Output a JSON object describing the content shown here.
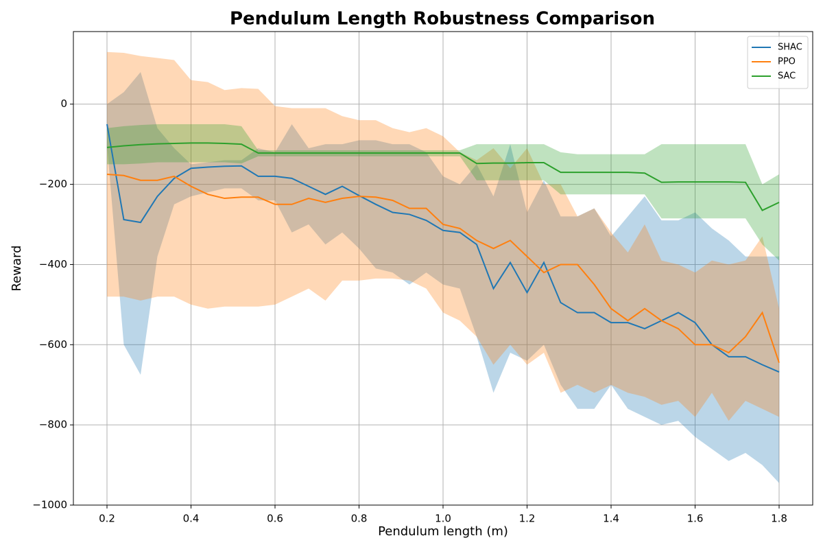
{
  "chart_data": {
    "type": "line",
    "title": "Pendulum Length Robustness Comparison",
    "x_label": "Pendulum length (m)",
    "y_label": "Reward",
    "x": [
      0.2,
      0.24,
      0.28,
      0.32,
      0.36,
      0.4,
      0.44,
      0.48,
      0.52,
      0.56,
      0.6,
      0.64,
      0.68,
      0.72,
      0.76,
      0.8,
      0.84,
      0.88,
      0.92,
      0.96,
      1.0,
      1.04,
      1.08,
      1.12,
      1.16,
      1.2,
      1.24,
      1.28,
      1.32,
      1.36,
      1.4,
      1.44,
      1.48,
      1.52,
      1.56,
      1.6,
      1.64,
      1.68,
      1.72,
      1.76,
      1.8
    ],
    "series": [
      {
        "name": "SHAC",
        "color": "#1f77b4",
        "values": [
          -50,
          -288,
          -295,
          -230,
          -185,
          -160,
          -157,
          -155,
          -154,
          -180,
          -180,
          -185,
          -205,
          -225,
          -205,
          -228,
          -250,
          -270,
          -275,
          -290,
          -315,
          -320,
          -350,
          -460,
          -395,
          -470,
          -395,
          -495,
          -520,
          -520,
          -545,
          -545,
          -560,
          -540,
          -520,
          -545,
          -600,
          -630,
          -630,
          -650,
          -668
        ],
        "upper": [
          0,
          30,
          80,
          -60,
          -110,
          -150,
          -145,
          -140,
          -140,
          -110,
          -120,
          -50,
          -110,
          -100,
          -100,
          -90,
          -90,
          -100,
          -100,
          -120,
          -180,
          -200,
          -150,
          -230,
          -100,
          -270,
          -190,
          -280,
          -280,
          -260,
          -330,
          -280,
          -230,
          -290,
          -290,
          -270,
          -310,
          -340,
          -380,
          -380,
          -380
        ],
        "lower": [
          -100,
          -600,
          -675,
          -380,
          -250,
          -230,
          -220,
          -210,
          -210,
          -240,
          -240,
          -320,
          -300,
          -350,
          -320,
          -360,
          -410,
          -420,
          -450,
          -420,
          -450,
          -460,
          -580,
          -720,
          -620,
          -640,
          -600,
          -700,
          -760,
          -760,
          -700,
          -760,
          -780,
          -800,
          -790,
          -830,
          -860,
          -890,
          -870,
          -900,
          -945
        ]
      },
      {
        "name": "PPO",
        "color": "#ff7f0e",
        "values": [
          -175,
          -178,
          -190,
          -190,
          -180,
          -205,
          -225,
          -235,
          -232,
          -232,
          -250,
          -250,
          -235,
          -245,
          -235,
          -230,
          -232,
          -240,
          -260,
          -260,
          -300,
          -310,
          -340,
          -360,
          -340,
          -380,
          -420,
          -400,
          -400,
          -450,
          -510,
          -540,
          -510,
          -540,
          -560,
          -600,
          -600,
          -620,
          -580,
          -520,
          -645
        ],
        "upper": [
          130,
          128,
          120,
          115,
          110,
          60,
          55,
          35,
          40,
          38,
          -5,
          -10,
          -10,
          -10,
          -30,
          -40,
          -40,
          -60,
          -70,
          -60,
          -80,
          -120,
          -140,
          -110,
          -160,
          -110,
          -200,
          -200,
          -280,
          -260,
          -320,
          -370,
          -300,
          -390,
          -400,
          -420,
          -390,
          -400,
          -390,
          -330,
          -510
        ],
        "lower": [
          -480,
          -480,
          -490,
          -480,
          -480,
          -500,
          -510,
          -505,
          -505,
          -505,
          -500,
          -480,
          -460,
          -490,
          -440,
          -440,
          -435,
          -435,
          -440,
          -460,
          -520,
          -540,
          -580,
          -650,
          -600,
          -650,
          -620,
          -720,
          -700,
          -720,
          -700,
          -720,
          -730,
          -750,
          -740,
          -780,
          -720,
          -790,
          -740,
          -760,
          -780
        ]
      },
      {
        "name": "SAC",
        "color": "#2ca02c",
        "values": [
          -108,
          -104,
          -101,
          -99,
          -98,
          -97,
          -97,
          -98,
          -100,
          -122,
          -122,
          -122,
          -122,
          -122,
          -122,
          -122,
          -122,
          -122,
          -122,
          -122,
          -122,
          -122,
          -148,
          -147,
          -147,
          -146,
          -146,
          -170,
          -170,
          -170,
          -170,
          -170,
          -172,
          -195,
          -194,
          -194,
          -194,
          -194,
          -195,
          -265,
          -245
        ],
        "upper": [
          -60,
          -55,
          -52,
          -50,
          -50,
          -50,
          -50,
          -50,
          -55,
          -115,
          -115,
          -115,
          -115,
          -115,
          -115,
          -115,
          -115,
          -115,
          -115,
          -115,
          -115,
          -115,
          -100,
          -100,
          -100,
          -100,
          -100,
          -120,
          -125,
          -125,
          -125,
          -125,
          -125,
          -100,
          -100,
          -100,
          -100,
          -100,
          -100,
          -200,
          -175
        ],
        "lower": [
          -150,
          -150,
          -148,
          -145,
          -145,
          -145,
          -145,
          -145,
          -148,
          -130,
          -130,
          -130,
          -130,
          -130,
          -130,
          -130,
          -130,
          -130,
          -130,
          -130,
          -130,
          -130,
          -190,
          -190,
          -190,
          -190,
          -190,
          -225,
          -225,
          -225,
          -225,
          -225,
          -225,
          -285,
          -285,
          -285,
          -285,
          -285,
          -285,
          -350,
          -390
        ]
      }
    ],
    "band_opacity": 0.3,
    "xlim": [
      0.12,
      1.88
    ],
    "ylim": [
      -1000,
      181
    ],
    "xticks": [
      0.2,
      0.4,
      0.6,
      0.8,
      1.0,
      1.2,
      1.4,
      1.6,
      1.8
    ],
    "xtick_labels": [
      "0.2",
      "0.4",
      "0.6",
      "0.8",
      "1.0",
      "1.2",
      "1.4",
      "1.6",
      "1.8"
    ],
    "yticks": [
      {
        "value": -1000,
        "label": "−1000"
      },
      {
        "value": -800,
        "label": "−800"
      },
      {
        "value": -600,
        "label": "−600"
      },
      {
        "value": -400,
        "label": "−400"
      },
      {
        "value": -200,
        "label": "−200"
      },
      0
    ],
    "grid": true,
    "legend": "upper right"
  }
}
